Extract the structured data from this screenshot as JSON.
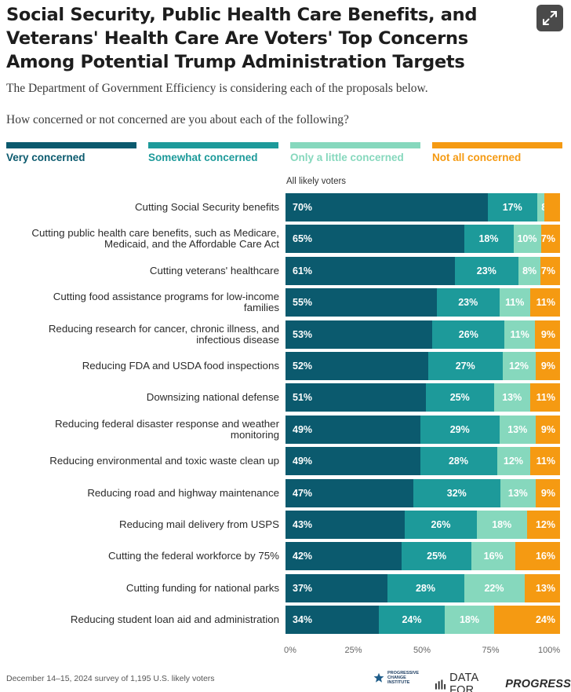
{
  "header": {
    "title": "Social Security, Public Health Care Benefits, and Veterans' Health Care Are Voters' Top Concerns Among Potential Trump Administration Targets",
    "subtitle": "The Department of Government Efficiency is considering each of the proposals below.",
    "question": "How concerned or not concerned are you about each of the following?",
    "expand_icon": "expand-icon"
  },
  "colors": {
    "very": "#0b5a6e",
    "somewhat": "#1d9a9a",
    "little": "#86d8bd",
    "not": "#f59a12"
  },
  "chart_data": {
    "type": "bar",
    "orientation": "horizontal",
    "stacked": true,
    "group_label": "All likely voters",
    "categories": [
      [
        "Cutting Social Security benefits"
      ],
      [
        "Cutting public health care benefits, such as Medicare,",
        "Medicaid, and the Affordable Care Act"
      ],
      [
        "Cutting veterans' healthcare"
      ],
      [
        "Cutting food assistance programs for low-income",
        "families"
      ],
      [
        "Reducing research for cancer, chronic illness, and",
        "infectious disease"
      ],
      [
        "Reducing FDA and USDA food inspections"
      ],
      [
        "Downsizing national defense"
      ],
      [
        "Reducing federal disaster response and weather",
        "monitoring"
      ],
      [
        "Reducing environmental and toxic waste clean up"
      ],
      [
        "Reducing road and highway maintenance"
      ],
      [
        "Reducing mail delivery from USPS"
      ],
      [
        "Cutting the federal workforce by 75%"
      ],
      [
        "Cutting funding for national parks"
      ],
      [
        "Reducing student loan aid and administration"
      ]
    ],
    "series": [
      {
        "name": "Very concerned",
        "color": "#0b5a6e",
        "values": [
          70,
          65,
          61,
          55,
          53,
          52,
          51,
          49,
          49,
          47,
          43,
          42,
          37,
          34
        ]
      },
      {
        "name": "Somewhat concerned",
        "color": "#1d9a9a",
        "values": [
          17,
          18,
          23,
          23,
          26,
          27,
          25,
          29,
          28,
          32,
          26,
          25,
          28,
          24
        ]
      },
      {
        "name": "Only a little concerned",
        "color": "#86d8bd",
        "values": [
          8,
          10,
          8,
          11,
          11,
          12,
          13,
          13,
          12,
          13,
          18,
          16,
          22,
          18
        ]
      },
      {
        "name": "Not all concerned",
        "color": "#f59a12",
        "values": [
          null,
          7,
          7,
          11,
          9,
          9,
          11,
          9,
          11,
          9,
          12,
          16,
          13,
          24
        ]
      }
    ],
    "xlim": [
      0,
      100
    ],
    "xticks": [
      "0%",
      "25%",
      "50%",
      "75%",
      "100%"
    ],
    "legend_position": "top"
  },
  "footer": {
    "note": "December 14–15, 2024 survey of 1,195 U.S. likely voters",
    "pci_lines": [
      "PROGRESSIVE",
      "CHANGE",
      "INSTITUTE"
    ],
    "dfp_left": "DATA FOR",
    "dfp_right": "PROGRESS"
  }
}
